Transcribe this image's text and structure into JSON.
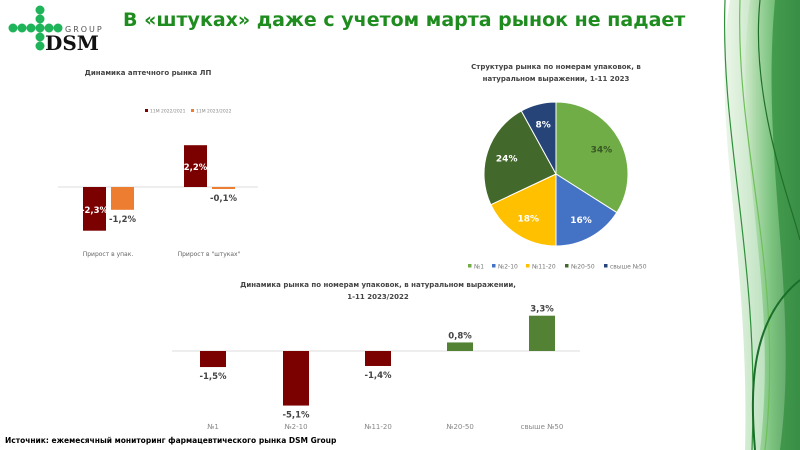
{
  "logo": {
    "text_group": "GROUP",
    "text_brand": "DSM"
  },
  "slide_title": "В «штуках» даже с учетом марта рынок не падает",
  "footer": "Источник: ежемесячный мониторинг фармацевтического рынка DSM Group",
  "colors": {
    "title": "#1f8c1f",
    "dark_red": "#7b0000",
    "orange": "#ed7d31",
    "green_bar": "#548235"
  },
  "chart_data": [
    {
      "type": "bar",
      "title": "Динамика аптечного рынка ЛП",
      "categories": [
        "Прирост в упак.",
        "Прирост в \"штуках\""
      ],
      "series": [
        {
          "name": "11M 2022/2021",
          "values": [
            -2.3,
            2.2
          ],
          "labels": [
            "-2,3%",
            "2,2%"
          ],
          "color": "#7b0000"
        },
        {
          "name": "11M 2023/2022",
          "values": [
            -1.2,
            -0.1
          ],
          "labels": [
            "-1,2%",
            "-0,1%"
          ],
          "color": "#ed7d31"
        }
      ],
      "unit": "%",
      "legend": "top",
      "grid": false
    },
    {
      "type": "pie",
      "title": "Структура рынка по номерам упаковок, в натуральном выражении, 1-11 2023",
      "categories": [
        "№1",
        "№2-10",
        "№11-20",
        "№20-50",
        "свыше №50"
      ],
      "values": [
        34,
        16,
        18,
        24,
        8
      ],
      "labels": [
        "34%",
        "16%",
        "18%",
        "24%",
        "8%"
      ],
      "colors": [
        "#70ad47",
        "#4472c4",
        "#ffc000",
        "#43682b",
        "#264478"
      ],
      "legend": "bottom"
    },
    {
      "type": "bar",
      "title": "Динамика рынка по номерам упаковок, в натуральном выражении, 1-11 2023/2022",
      "title_lines": [
        "Динамика рынка по номерам упаковок, в натуральном выражении,",
        "1-11 2023/2022"
      ],
      "categories": [
        "№1",
        "№2-10",
        "№11-20",
        "№20-50",
        "свыше №50"
      ],
      "values": [
        -1.5,
        -5.1,
        -1.4,
        0.8,
        3.3
      ],
      "labels": [
        "-1,5%",
        "-5,1%",
        "-1,4%",
        "0,8%",
        "3,3%"
      ],
      "unit": "%",
      "colors": {
        "negative": "#7b0000",
        "positive": "#548235"
      },
      "grid": false
    }
  ]
}
